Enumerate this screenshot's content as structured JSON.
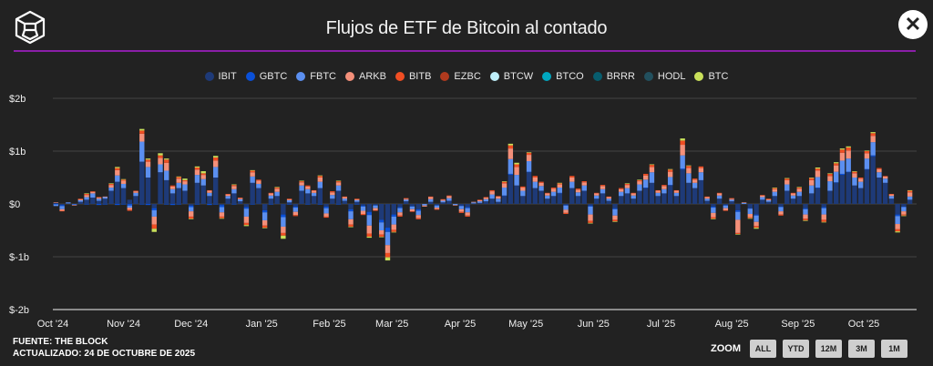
{
  "header": {
    "title": "Flujos de ETF de Bitcoin al contado",
    "close_icon": "close-icon",
    "logo_icon": "the-block-cube-logo"
  },
  "colors": {
    "accent_line": "#8b1fa8",
    "background": "#222222"
  },
  "footer": {
    "source": "FUENTE: THE BLOCK",
    "updated": "ACTUALIZADO: 24 DE OCTUBRE DE 2025"
  },
  "zoom": {
    "label": "ZOOM",
    "buttons": [
      "ALL",
      "YTD",
      "12M",
      "3M",
      "1M"
    ]
  },
  "chart_data": {
    "type": "bar",
    "stacked": true,
    "title": "Flujos de ETF de Bitcoin al contado",
    "units": "USD millions per trading day (approx.)",
    "x_range": [
      "2024-10-01",
      "2025-10-24"
    ],
    "ylim": [
      -2000,
      2000
    ],
    "y_ticks": [
      {
        "value": 2000,
        "label": "$2b"
      },
      {
        "value": 1000,
        "label": "$1b"
      },
      {
        "value": 0,
        "label": "$0"
      },
      {
        "value": -1000,
        "label": "$-1b"
      },
      {
        "value": -2000,
        "label": "$-2b"
      }
    ],
    "x_ticks": [
      {
        "index": 0,
        "label": "Oct '24"
      },
      {
        "index": 11.5,
        "label": "Nov '24"
      },
      {
        "index": 22.5,
        "label": "Dec '24"
      },
      {
        "index": 34,
        "label": "Jan '25"
      },
      {
        "index": 45,
        "label": "Feb '25"
      },
      {
        "index": 55.2,
        "label": "Mar '25"
      },
      {
        "index": 66.3,
        "label": "Apr '25"
      },
      {
        "index": 77,
        "label": "May '25"
      },
      {
        "index": 88,
        "label": "Jun '25"
      },
      {
        "index": 99,
        "label": "Jul '25"
      },
      {
        "index": 110.5,
        "label": "Aug '25"
      },
      {
        "index": 121.3,
        "label": "Sep '25"
      },
      {
        "index": 132,
        "label": "Oct '25"
      }
    ],
    "grid": true,
    "legend_position": "top-center",
    "legend": [
      {
        "name": "IBIT",
        "color": "#1e3a78"
      },
      {
        "name": "GBTC",
        "color": "#0a50d8"
      },
      {
        "name": "FBTC",
        "color": "#5b8ff0"
      },
      {
        "name": "ARKB",
        "color": "#f4907a"
      },
      {
        "name": "BITB",
        "color": "#f04e23"
      },
      {
        "name": "EZBC",
        "color": "#b03a1e"
      },
      {
        "name": "BTCW",
        "color": "#bff0fb"
      },
      {
        "name": "BTCO",
        "color": "#00a7c0"
      },
      {
        "name": "BRRR",
        "color": "#075d6e"
      },
      {
        "name": "HODL",
        "color": "#22505e"
      },
      {
        "name": "BTC",
        "color": "#c9e05a"
      }
    ],
    "series": [
      {
        "name": "IBIT",
        "values": [
          20,
          -20,
          10,
          0,
          40,
          80,
          120,
          60,
          100,
          250,
          420,
          300,
          80,
          150,
          800,
          500,
          -80,
          600,
          450,
          200,
          300,
          250,
          -30,
          400,
          350,
          150,
          500,
          -20,
          100,
          200,
          50,
          -60,
          400,
          300,
          -120,
          100,
          150,
          -200,
          30,
          -50,
          250,
          200,
          150,
          300,
          -50,
          100,
          250,
          60,
          -100,
          40,
          -30,
          -150,
          -20,
          -300,
          -450,
          -200,
          -60,
          50,
          -40,
          -100,
          0,
          40,
          -20,
          30,
          60,
          0,
          -30,
          -60,
          10,
          20,
          50,
          100,
          40,
          150,
          550,
          350,
          150,
          600,
          300,
          250,
          100,
          150,
          200,
          -20,
          300,
          150,
          250,
          -30,
          100,
          200,
          60,
          -80,
          150,
          200,
          100,
          250,
          300,
          400,
          150,
          200,
          350,
          150,
          650,
          400,
          300,
          450,
          60,
          -50,
          100,
          -20,
          50,
          -120,
          0,
          -80,
          -200,
          80,
          40,
          150,
          -50,
          250,
          100,
          150,
          -80,
          200,
          300,
          -60,
          250,
          400,
          550,
          600,
          350,
          300,
          650,
          900,
          500,
          400,
          100,
          -200,
          -50,
          80
        ]
      },
      {
        "name": "GBTC",
        "values": [
          -10,
          -20,
          0,
          -10,
          0,
          -10,
          0,
          -20,
          -10,
          0,
          -20,
          -10,
          -30,
          0,
          -10,
          -20,
          -40,
          0,
          -10,
          -20,
          -10,
          0,
          -30,
          -10,
          0,
          -20,
          -10,
          -40,
          0,
          -10,
          0,
          -30,
          -10,
          0,
          -40,
          -10,
          0,
          -50,
          -10,
          -20,
          0,
          -10,
          0,
          -10,
          -30,
          0,
          -10,
          0,
          -40,
          -10,
          -20,
          -60,
          -10,
          -50,
          -80,
          -40,
          -20,
          0,
          -10,
          -30,
          0,
          0,
          -10,
          0,
          0,
          0,
          -10,
          -20,
          0,
          0,
          0,
          0,
          0,
          10,
          20,
          0,
          0,
          10,
          0,
          0,
          0,
          0,
          10,
          -10,
          0,
          0,
          0,
          -20,
          0,
          0,
          0,
          -20,
          0,
          0,
          0,
          0,
          10,
          0,
          0,
          0,
          10,
          0,
          20,
          0,
          0,
          0,
          0,
          -20,
          0,
          -10,
          0,
          -30,
          0,
          -10,
          -20,
          0,
          0,
          0,
          -10,
          0,
          0,
          0,
          -20,
          0,
          10,
          -20,
          0,
          10,
          20,
          10,
          0,
          0,
          10,
          20,
          0,
          0,
          0,
          -30,
          -10,
          0
        ]
      },
      {
        "name": "FBTC",
        "values": [
          -30,
          -60,
          20,
          -10,
          30,
          50,
          80,
          40,
          30,
          60,
          120,
          80,
          -40,
          60,
          380,
          200,
          -120,
          150,
          180,
          80,
          100,
          120,
          -80,
          150,
          120,
          60,
          200,
          -100,
          50,
          80,
          40,
          -150,
          120,
          80,
          -150,
          60,
          80,
          -180,
          40,
          -80,
          100,
          80,
          60,
          120,
          -100,
          70,
          100,
          40,
          -150,
          30,
          -80,
          -200,
          -50,
          -150,
          -250,
          -150,
          -80,
          30,
          -50,
          -80,
          -30,
          50,
          -40,
          30,
          50,
          -20,
          -60,
          -80,
          20,
          30,
          40,
          80,
          60,
          150,
          280,
          200,
          100,
          200,
          120,
          90,
          60,
          80,
          100,
          -80,
          120,
          70,
          100,
          -150,
          60,
          80,
          40,
          -120,
          80,
          100,
          60,
          120,
          150,
          200,
          60,
          80,
          150,
          60,
          250,
          180,
          100,
          150,
          40,
          -100,
          60,
          -50,
          30,
          -150,
          20,
          -100,
          -120,
          50,
          30,
          80,
          -80,
          120,
          60,
          80,
          -100,
          150,
          200,
          -120,
          180,
          200,
          250,
          250,
          150,
          120,
          200,
          250,
          100,
          80,
          50,
          -150,
          -80,
          60
        ]
      },
      {
        "name": "ARKB",
        "values": [
          10,
          -30,
          0,
          -10,
          20,
          40,
          30,
          20,
          10,
          50,
          100,
          60,
          -40,
          30,
          150,
          100,
          -150,
          120,
          150,
          50,
          80,
          60,
          -100,
          100,
          80,
          40,
          120,
          -80,
          30,
          60,
          20,
          -120,
          80,
          60,
          -100,
          40,
          60,
          -120,
          20,
          -60,
          60,
          50,
          40,
          80,
          -60,
          50,
          60,
          30,
          -100,
          20,
          -60,
          -150,
          -40,
          -80,
          -150,
          -100,
          -60,
          20,
          -40,
          -60,
          -20,
          40,
          -30,
          20,
          40,
          -10,
          -50,
          -60,
          10,
          20,
          30,
          60,
          40,
          80,
          200,
          150,
          60,
          120,
          80,
          60,
          40,
          60,
          60,
          -60,
          80,
          50,
          60,
          -120,
          40,
          60,
          30,
          -80,
          50,
          60,
          40,
          60,
          80,
          100,
          40,
          60,
          100,
          40,
          200,
          100,
          60,
          80,
          30,
          -80,
          40,
          -40,
          20,
          -250,
          10,
          -60,
          -80,
          30,
          20,
          50,
          -60,
          80,
          40,
          60,
          -80,
          100,
          120,
          -100,
          100,
          120,
          150,
          150,
          80,
          60,
          100,
          120,
          60,
          40,
          30,
          -100,
          -60,
          80
        ]
      },
      {
        "name": "BITB",
        "values": [
          0,
          -10,
          0,
          0,
          10,
          20,
          10,
          10,
          0,
          20,
          40,
          20,
          -20,
          10,
          60,
          40,
          -80,
          50,
          60,
          20,
          30,
          20,
          -40,
          40,
          30,
          10,
          60,
          -30,
          10,
          20,
          10,
          -40,
          30,
          20,
          -40,
          10,
          20,
          -50,
          10,
          -20,
          20,
          20,
          10,
          30,
          -20,
          20,
          20,
          10,
          -40,
          10,
          -20,
          -60,
          -10,
          -40,
          -80,
          -40,
          -20,
          10,
          -10,
          -20,
          0,
          10,
          -10,
          10,
          10,
          0,
          -20,
          -20,
          0,
          10,
          10,
          20,
          10,
          30,
          60,
          50,
          20,
          40,
          30,
          20,
          10,
          20,
          20,
          -20,
          30,
          20,
          20,
          -40,
          10,
          20,
          10,
          -30,
          20,
          20,
          10,
          20,
          30,
          40,
          10,
          20,
          40,
          10,
          80,
          40,
          20,
          30,
          10,
          -30,
          10,
          -10,
          10,
          -20,
          0,
          -20,
          -30,
          10,
          10,
          20,
          -20,
          30,
          10,
          20,
          -30,
          40,
          40,
          -40,
          40,
          40,
          60,
          60,
          30,
          20,
          40,
          50,
          20,
          10,
          10,
          -40,
          -20,
          30
        ]
      },
      {
        "name": "BTC",
        "values": [
          0,
          0,
          0,
          0,
          0,
          10,
          0,
          0,
          0,
          10,
          20,
          10,
          0,
          0,
          30,
          20,
          -60,
          40,
          20,
          0,
          10,
          30,
          -10,
          20,
          40,
          0,
          30,
          -10,
          0,
          10,
          0,
          -20,
          10,
          0,
          -10,
          0,
          10,
          -60,
          0,
          0,
          10,
          0,
          0,
          10,
          0,
          0,
          10,
          0,
          -10,
          0,
          0,
          -20,
          0,
          -10,
          -60,
          -10,
          0,
          0,
          0,
          0,
          0,
          0,
          0,
          0,
          0,
          0,
          0,
          0,
          0,
          0,
          0,
          0,
          0,
          10,
          30,
          30,
          0,
          10,
          0,
          0,
          0,
          0,
          10,
          0,
          0,
          0,
          0,
          -10,
          0,
          0,
          0,
          -10,
          0,
          10,
          0,
          10,
          0,
          10,
          0,
          0,
          10,
          0,
          40,
          10,
          0,
          0,
          0,
          -10,
          0,
          0,
          0,
          -10,
          0,
          -10,
          -20,
          0,
          0,
          10,
          0,
          10,
          0,
          10,
          -10,
          10,
          20,
          -10,
          10,
          20,
          20,
          20,
          10,
          0,
          10,
          20,
          0,
          0,
          0,
          -20,
          -10,
          10
        ]
      }
    ]
  }
}
